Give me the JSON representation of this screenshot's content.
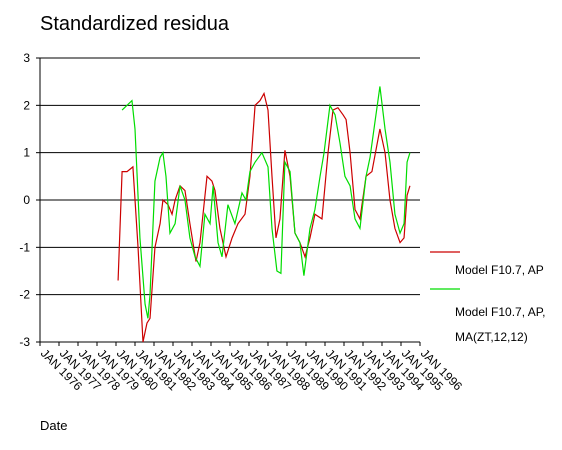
{
  "chart_data": {
    "type": "line",
    "title": "Standardized residua",
    "x_label": "Date",
    "xlim": [
      1976,
      1996
    ],
    "xticks": [
      {
        "value": 1976,
        "label": "JAN 1976"
      },
      {
        "value": 1977,
        "label": "JAN 1977"
      },
      {
        "value": 1978,
        "label": "JAN 1978"
      },
      {
        "value": 1979,
        "label": "JAN 1979"
      },
      {
        "value": 1980,
        "label": "JAN 1980"
      },
      {
        "value": 1981,
        "label": "JAN 1981"
      },
      {
        "value": 1982,
        "label": "JAN 1982"
      },
      {
        "value": 1983,
        "label": "JAN 1983"
      },
      {
        "value": 1984,
        "label": "JAN 1984"
      },
      {
        "value": 1985,
        "label": "JAN 1985"
      },
      {
        "value": 1986,
        "label": "JAN 1986"
      },
      {
        "value": 1987,
        "label": "JAN 1987"
      },
      {
        "value": 1988,
        "label": "JAN 1988"
      },
      {
        "value": 1989,
        "label": "JAN 1989"
      },
      {
        "value": 1990,
        "label": "JAN 1990"
      },
      {
        "value": 1991,
        "label": "JAN 1991"
      },
      {
        "value": 1992,
        "label": "JAN 1992"
      },
      {
        "value": 1993,
        "label": "JAN 1993"
      },
      {
        "value": 1994,
        "label": "JAN 1994"
      },
      {
        "value": 1995,
        "label": "JAN 1995"
      },
      {
        "value": 1996,
        "label": "JAN 1996"
      }
    ],
    "ylim": [
      -3,
      3
    ],
    "yticks": [
      3,
      2,
      1,
      0,
      -1,
      -2,
      -3
    ],
    "grid": true,
    "series": [
      {
        "name": "Model F10.7, AP",
        "color": "#cc0000",
        "x": [
          1980.11,
          1980.32,
          1980.58,
          1980.89,
          1981.16,
          1981.42,
          1981.63,
          1981.79,
          1982.05,
          1982.32,
          1982.47,
          1982.74,
          1982.95,
          1983.11,
          1983.37,
          1983.63,
          1983.89,
          1984.21,
          1984.42,
          1984.58,
          1984.79,
          1985.05,
          1985.21,
          1985.47,
          1985.79,
          1986.11,
          1986.42,
          1986.79,
          1987.05,
          1987.32,
          1987.58,
          1987.79,
          1988.0,
          1988.21,
          1988.42,
          1988.63,
          1988.89,
          1989.16,
          1989.42,
          1989.68,
          1989.95,
          1990.21,
          1990.47,
          1990.84,
          1991.0,
          1991.16,
          1991.42,
          1991.68,
          1991.95,
          1992.11,
          1992.32,
          1992.58,
          1992.84,
          1993.16,
          1993.47,
          1993.89,
          1994.16,
          1994.42,
          1994.68,
          1994.95,
          1995.16,
          1995.32,
          1995.47
        ],
        "values": [
          -1.7,
          0.6,
          0.6,
          0.7,
          -1.0,
          -3.0,
          -2.6,
          -2.5,
          -1.0,
          -0.5,
          0,
          -0.1,
          -0.3,
          0,
          0.3,
          0.2,
          -0.5,
          -1.3,
          -0.9,
          -0.3,
          0.5,
          0.4,
          0.2,
          -0.6,
          -1.2,
          -0.8,
          -0.5,
          -0.3,
          0.5,
          2.0,
          2.1,
          2.25,
          1.9,
          0.5,
          -0.8,
          -0.4,
          1.05,
          0.5,
          -0.7,
          -0.9,
          -1.2,
          -0.8,
          -0.3,
          -0.4,
          0.3,
          1.0,
          1.9,
          1.95,
          1.8,
          1.7,
          1.0,
          -0.2,
          -0.4,
          0.5,
          0.6,
          1.5,
          1.0,
          0,
          -0.6,
          -0.9,
          -0.8,
          0.1,
          0.3
        ]
      },
      {
        "name": "Model F10.7, AP, MA(ZT,12,12)",
        "color": "#00dd00",
        "x": [
          1980.32,
          1980.58,
          1980.84,
          1981.0,
          1981.26,
          1981.53,
          1981.68,
          1981.79,
          1982.05,
          1982.32,
          1982.47,
          1982.63,
          1982.84,
          1983.11,
          1983.37,
          1983.63,
          1983.89,
          1984.16,
          1984.42,
          1984.68,
          1984.95,
          1985.11,
          1985.37,
          1985.58,
          1985.89,
          1986.26,
          1986.63,
          1986.84,
          1987.05,
          1987.32,
          1987.68,
          1988.0,
          1988.21,
          1988.47,
          1988.68,
          1988.89,
          1989.16,
          1989.42,
          1989.68,
          1989.89,
          1990.21,
          1990.47,
          1990.74,
          1990.95,
          1991.26,
          1991.53,
          1991.79,
          1992.05,
          1992.32,
          1992.58,
          1992.84,
          1993.16,
          1993.37,
          1993.89,
          1994.16,
          1994.42,
          1994.68,
          1994.95,
          1995.16,
          1995.32,
          1995.47
        ],
        "values": [
          1.9,
          2.0,
          2.1,
          1.5,
          -0.8,
          -2.2,
          -2.5,
          -2.0,
          0.4,
          0.9,
          1.0,
          0.5,
          -0.7,
          -0.5,
          0.3,
          0,
          -0.8,
          -1.2,
          -1.4,
          -0.3,
          -0.5,
          0.3,
          -0.9,
          -1.2,
          -0.1,
          -0.5,
          0.15,
          0,
          0.6,
          0.8,
          1.0,
          0.7,
          -0.6,
          -1.5,
          -1.55,
          0.8,
          0.6,
          -0.7,
          -0.9,
          -1.6,
          -0.6,
          -0.2,
          0.5,
          1.0,
          2.0,
          1.8,
          1.2,
          0.5,
          0.3,
          -0.4,
          -0.6,
          0.5,
          0.9,
          2.4,
          1.5,
          0.8,
          -0.3,
          -0.7,
          -0.5,
          0.8,
          1.0
        ]
      }
    ]
  }
}
